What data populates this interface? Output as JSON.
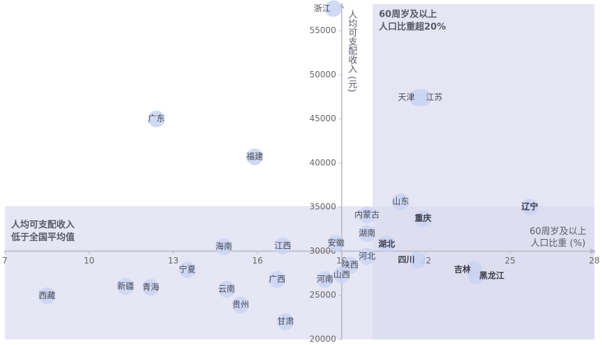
{
  "chart_data": {
    "type": "scatter",
    "xlim": [
      7,
      28
    ],
    "ylim": [
      20000,
      58000
    ],
    "x_ticks": [
      7,
      10,
      13,
      16,
      19,
      22,
      25,
      28
    ],
    "y_ticks": [
      20000,
      25000,
      30000,
      35000,
      40000,
      45000,
      50000,
      55000
    ],
    "x_axis_crosses_at_y": 30000,
    "y_axis_crosses_at_x": 19,
    "xlabel": "60周岁及以上\n人口比重 (%)",
    "ylabel": "人均可支配收入 (元)",
    "annotations": {
      "top_right": "60周岁及以上\n人口比重超20%",
      "left": "人均可支配收入\n低于全国平均值"
    },
    "highlight_regions": [
      {
        "name": "60周岁及以上人口比重超20%",
        "x": [
          20.1,
          28
        ],
        "y": [
          20000,
          58000
        ]
      },
      {
        "name": "人均可支配收入低于全国平均值",
        "x": [
          7,
          28
        ],
        "y": [
          20000,
          35100
        ]
      }
    ],
    "colors": {
      "bubble": "#c9d3f2",
      "region": "#dcdcf0",
      "axis": "#b8b8c4"
    },
    "points": [
      {
        "label": "浙江",
        "x": 18.7,
        "y": 57500,
        "bold": false,
        "label_pos": "left"
      },
      {
        "label": "天津",
        "x": 21.7,
        "y": 47400,
        "bold": false,
        "label_pos": "left"
      },
      {
        "label": "江苏",
        "x": 21.9,
        "y": 47400,
        "bold": false,
        "label_pos": "right"
      },
      {
        "label": "广东",
        "x": 12.4,
        "y": 45000,
        "bold": false,
        "label_pos": "center"
      },
      {
        "label": "福建",
        "x": 15.9,
        "y": 40700,
        "bold": false,
        "label_pos": "center"
      },
      {
        "label": "山东",
        "x": 21.1,
        "y": 35600,
        "bold": false,
        "label_pos": "center"
      },
      {
        "label": "辽宁",
        "x": 25.7,
        "y": 35000,
        "bold": true,
        "label_pos": "center"
      },
      {
        "label": "内蒙古",
        "x": 19.9,
        "y": 34100,
        "bold": false,
        "label_pos": "center"
      },
      {
        "label": "重庆",
        "x": 21.9,
        "y": 33700,
        "bold": true,
        "label_pos": "center"
      },
      {
        "label": "湖南",
        "x": 19.9,
        "y": 32000,
        "bold": false,
        "label_pos": "center"
      },
      {
        "label": "湖北",
        "x": 20.6,
        "y": 30800,
        "bold": true,
        "label_pos": "center"
      },
      {
        "label": "安徽",
        "x": 18.8,
        "y": 30900,
        "bold": false,
        "label_pos": "center"
      },
      {
        "label": "江西",
        "x": 16.9,
        "y": 30600,
        "bold": false,
        "label_pos": "center"
      },
      {
        "label": "海南",
        "x": 14.8,
        "y": 30500,
        "bold": false,
        "label_pos": "center"
      },
      {
        "label": "河北",
        "x": 19.9,
        "y": 29400,
        "bold": false,
        "label_pos": "center"
      },
      {
        "label": "四川",
        "x": 21.7,
        "y": 29000,
        "bold": true,
        "label_pos": "left"
      },
      {
        "label": "吉林",
        "x": 23.7,
        "y": 27900,
        "bold": true,
        "label_pos": "left"
      },
      {
        "label": "黑龙江",
        "x": 23.8,
        "y": 27200,
        "bold": true,
        "label_pos": "right"
      },
      {
        "label": "陕西",
        "x": 19.3,
        "y": 28400,
        "bold": false,
        "label_pos": "center"
      },
      {
        "label": "宁夏",
        "x": 13.5,
        "y": 27900,
        "bold": false,
        "label_pos": "center"
      },
      {
        "label": "山西",
        "x": 19.0,
        "y": 27300,
        "bold": false,
        "label_pos": "center"
      },
      {
        "label": "河南",
        "x": 18.4,
        "y": 26800,
        "bold": false,
        "label_pos": "center"
      },
      {
        "label": "广西",
        "x": 16.7,
        "y": 26800,
        "bold": false,
        "label_pos": "center"
      },
      {
        "label": "新疆",
        "x": 11.3,
        "y": 26000,
        "bold": false,
        "label_pos": "center"
      },
      {
        "label": "青海",
        "x": 12.2,
        "y": 25900,
        "bold": false,
        "label_pos": "center"
      },
      {
        "label": "云南",
        "x": 14.9,
        "y": 25700,
        "bold": false,
        "label_pos": "center"
      },
      {
        "label": "西藏",
        "x": 8.5,
        "y": 24950,
        "bold": false,
        "label_pos": "center"
      },
      {
        "label": "贵州",
        "x": 15.4,
        "y": 23900,
        "bold": false,
        "label_pos": "center"
      },
      {
        "label": "甘肃",
        "x": 17.0,
        "y": 22000,
        "bold": false,
        "label_pos": "center"
      }
    ]
  }
}
